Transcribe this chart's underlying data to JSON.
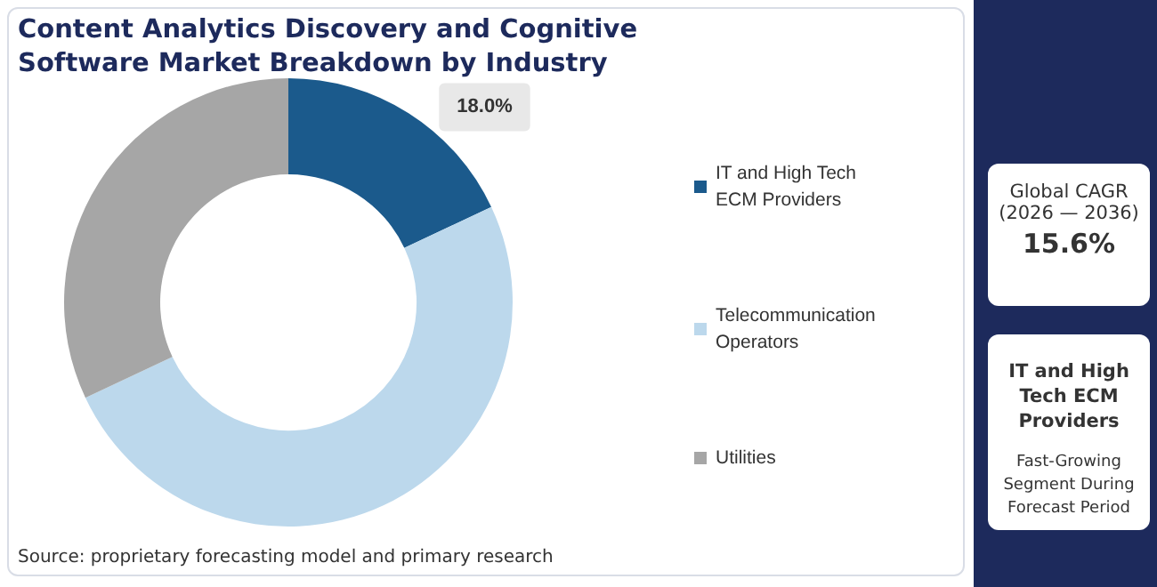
{
  "chart_data": {
    "type": "donut",
    "title": "Content Analytics Discovery and Cognitive Software Market Breakdown by Industry",
    "categories": [
      "IT and High Tech ECM Providers",
      "Telecommunication Operators",
      "Utilities"
    ],
    "values": [
      18.0,
      50.0,
      32.0
    ],
    "colors": [
      "#1b5a8c",
      "#bcd8ec",
      "#a6a6a6"
    ],
    "value_labels": [
      "18.0%",
      null,
      null
    ],
    "legend": "right",
    "annotations": [
      "Source: proprietary forecasting model and primary research",
      "Global CAGR",
      "(2026 — 2036)",
      "15.6%",
      "IT and High Tech ECM Providers",
      "Fast-Growing Segment During Forecast Period"
    ]
  }
}
